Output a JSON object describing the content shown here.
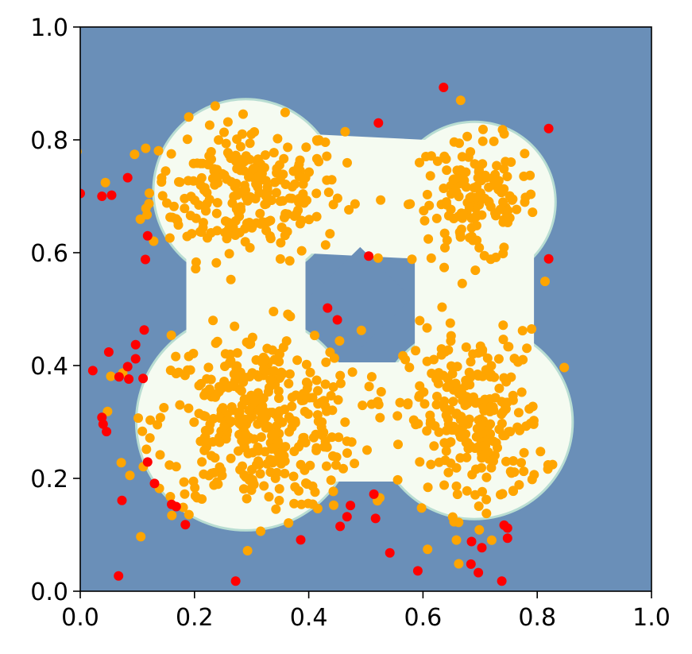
{
  "chart_data": {
    "type": "scatter",
    "title": "",
    "xlabel": "",
    "ylabel": "",
    "xlim": [
      0.0,
      1.0
    ],
    "ylim": [
      0.0,
      1.0
    ],
    "grid": false,
    "legend": "none",
    "x_ticks": [
      "0.0",
      "0.2",
      "0.4",
      "0.6",
      "0.8",
      "1.0"
    ],
    "y_ticks": [
      "0.0",
      "0.2",
      "0.4",
      "0.6",
      "0.8",
      "1.0"
    ],
    "colors": {
      "background_region": "#6a8fb8",
      "decision_region": "#f5fbf1",
      "region_edge": "#b8ddd2",
      "inlier_points": "#ffa500",
      "outlier_points": "#ff0000"
    },
    "decision_region_centers": [
      {
        "x": 0.29,
        "y": 0.71,
        "r": 0.16
      },
      {
        "x": 0.69,
        "y": 0.69,
        "r": 0.14
      },
      {
        "x": 0.29,
        "y": 0.3,
        "r": 0.19
      },
      {
        "x": 0.69,
        "y": 0.3,
        "r": 0.17
      }
    ],
    "inlier_clusters": [
      {
        "x": 0.29,
        "y": 0.71,
        "sx": 0.085,
        "sy": 0.06,
        "n": 260
      },
      {
        "x": 0.69,
        "y": 0.69,
        "sx": 0.055,
        "sy": 0.055,
        "n": 150
      },
      {
        "x": 0.31,
        "y": 0.3,
        "sx": 0.09,
        "sy": 0.08,
        "n": 400
      },
      {
        "x": 0.69,
        "y": 0.3,
        "sx": 0.06,
        "sy": 0.08,
        "n": 260
      }
    ],
    "outliers": [
      [
        0.0,
        0.705
      ],
      [
        0.038,
        0.7
      ],
      [
        0.055,
        0.702
      ],
      [
        0.083,
        0.733
      ],
      [
        0.118,
        0.63
      ],
      [
        0.114,
        0.588
      ],
      [
        0.112,
        0.463
      ],
      [
        0.097,
        0.437
      ],
      [
        0.097,
        0.412
      ],
      [
        0.083,
        0.398
      ],
      [
        0.05,
        0.424
      ],
      [
        0.022,
        0.391
      ],
      [
        0.068,
        0.38
      ],
      [
        0.085,
        0.376
      ],
      [
        0.11,
        0.377
      ],
      [
        0.038,
        0.308
      ],
      [
        0.04,
        0.296
      ],
      [
        0.046,
        0.283
      ],
      [
        0.118,
        0.229
      ],
      [
        0.13,
        0.191
      ],
      [
        0.16,
        0.154
      ],
      [
        0.168,
        0.15
      ],
      [
        0.073,
        0.161
      ],
      [
        0.184,
        0.118
      ],
      [
        0.067,
        0.027
      ],
      [
        0.272,
        0.018
      ],
      [
        0.386,
        0.091
      ],
      [
        0.433,
        0.502
      ],
      [
        0.45,
        0.481
      ],
      [
        0.505,
        0.594
      ],
      [
        0.522,
        0.83
      ],
      [
        0.636,
        0.893
      ],
      [
        0.82,
        0.82
      ],
      [
        0.82,
        0.589
      ],
      [
        0.473,
        0.152
      ],
      [
        0.467,
        0.132
      ],
      [
        0.455,
        0.115
      ],
      [
        0.514,
        0.172
      ],
      [
        0.517,
        0.129
      ],
      [
        0.542,
        0.068
      ],
      [
        0.591,
        0.036
      ],
      [
        0.685,
        0.088
      ],
      [
        0.703,
        0.077
      ],
      [
        0.684,
        0.048
      ],
      [
        0.697,
        0.033
      ],
      [
        0.742,
        0.117
      ],
      [
        0.748,
        0.112
      ],
      [
        0.748,
        0.094
      ],
      [
        0.738,
        0.018
      ]
    ]
  }
}
